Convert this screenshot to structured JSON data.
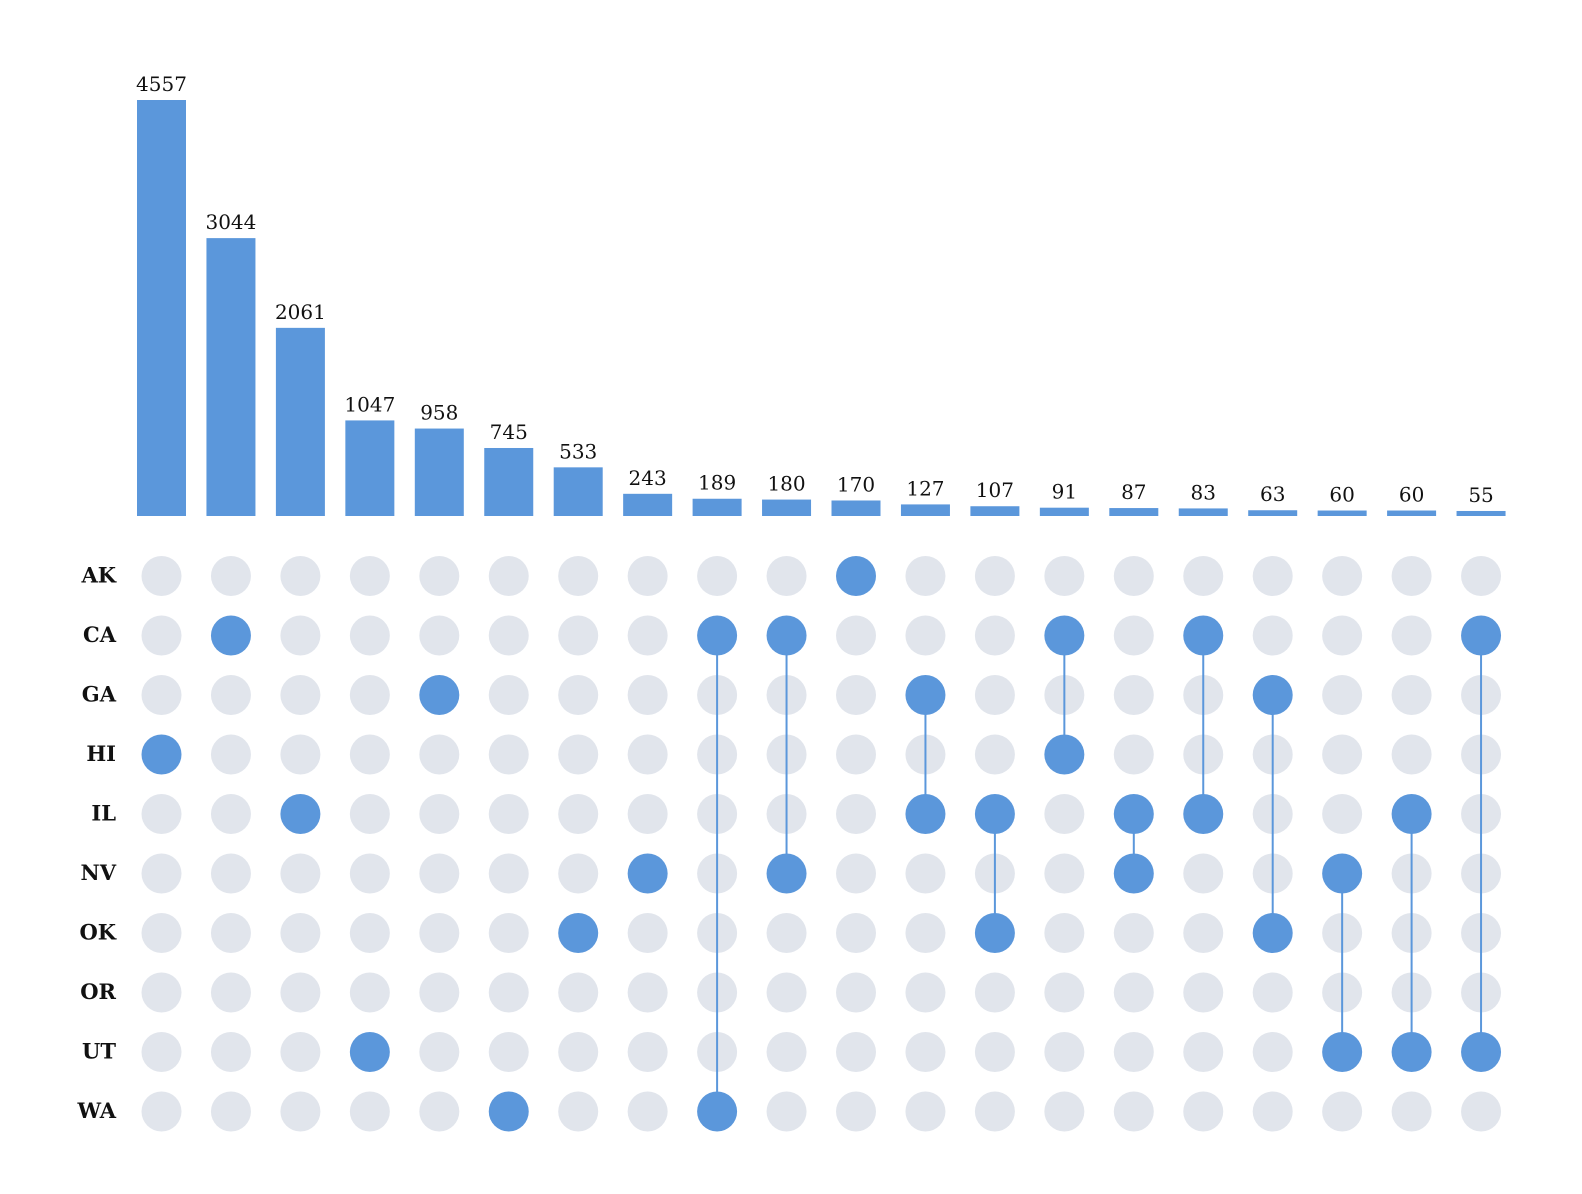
{
  "chart_data": {
    "type": "bar",
    "subtype": "upset",
    "title": "",
    "xlabel": "",
    "ylabel": "",
    "ylim": [
      0,
      4557
    ],
    "grid": false,
    "colors": {
      "active": "#5b97db",
      "inactive": "#e1e5ec",
      "text": "#111111"
    },
    "sets": [
      "AK",
      "CA",
      "GA",
      "HI",
      "IL",
      "NV",
      "OK",
      "OR",
      "UT",
      "WA"
    ],
    "intersections": [
      {
        "value": 4557,
        "sets": [
          "HI"
        ]
      },
      {
        "value": 3044,
        "sets": [
          "CA"
        ]
      },
      {
        "value": 2061,
        "sets": [
          "IL"
        ]
      },
      {
        "value": 1047,
        "sets": [
          "UT"
        ]
      },
      {
        "value": 958,
        "sets": [
          "GA"
        ]
      },
      {
        "value": 745,
        "sets": [
          "WA"
        ]
      },
      {
        "value": 533,
        "sets": [
          "OK"
        ]
      },
      {
        "value": 243,
        "sets": [
          "NV"
        ]
      },
      {
        "value": 189,
        "sets": [
          "CA",
          "WA"
        ]
      },
      {
        "value": 180,
        "sets": [
          "CA",
          "NV"
        ]
      },
      {
        "value": 170,
        "sets": [
          "AK"
        ]
      },
      {
        "value": 127,
        "sets": [
          "GA",
          "IL"
        ]
      },
      {
        "value": 107,
        "sets": [
          "IL",
          "OK"
        ]
      },
      {
        "value": 91,
        "sets": [
          "CA",
          "HI"
        ]
      },
      {
        "value": 87,
        "sets": [
          "IL",
          "NV"
        ]
      },
      {
        "value": 83,
        "sets": [
          "CA",
          "IL"
        ]
      },
      {
        "value": 63,
        "sets": [
          "GA",
          "OK"
        ]
      },
      {
        "value": 60,
        "sets": [
          "NV",
          "UT"
        ]
      },
      {
        "value": 60,
        "sets": [
          "IL",
          "UT"
        ]
      },
      {
        "value": 55,
        "sets": [
          "CA",
          "UT"
        ]
      }
    ]
  }
}
